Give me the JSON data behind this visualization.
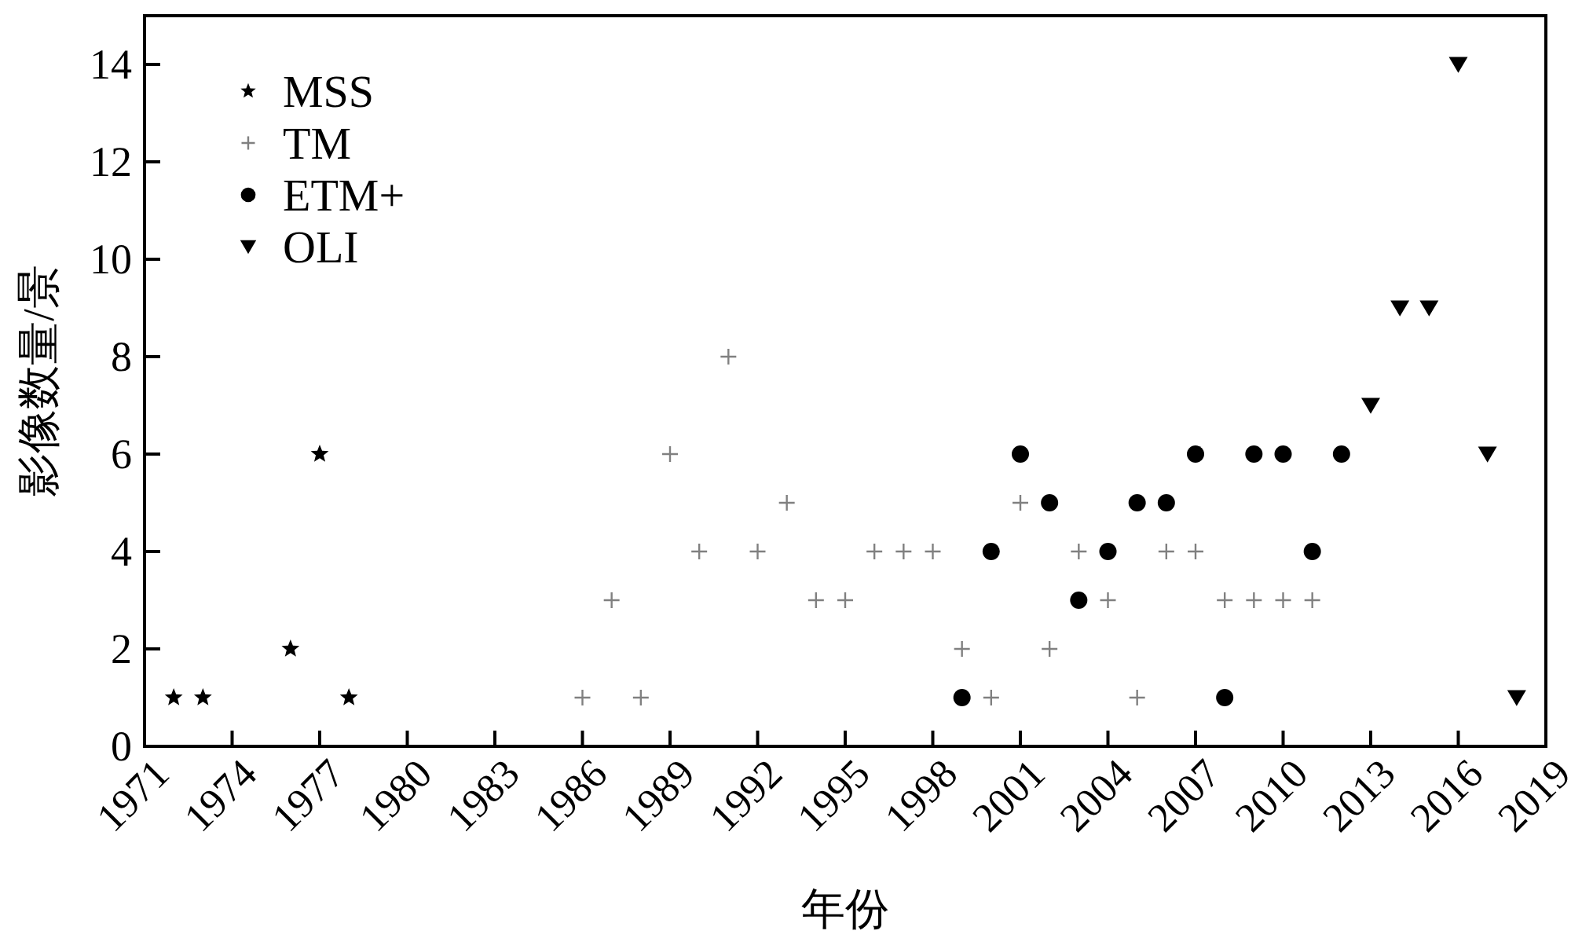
{
  "chart_data": {
    "type": "scatter",
    "xlabel": "年份",
    "ylabel": "影像数量/景",
    "xlim": [
      1971,
      2019
    ],
    "xticks": [
      1971,
      1974,
      1977,
      1980,
      1983,
      1986,
      1989,
      1992,
      1995,
      1998,
      2001,
      2004,
      2007,
      2010,
      2013,
      2016,
      2019
    ],
    "ylim": [
      0,
      15
    ],
    "yticks": [
      0,
      2,
      4,
      6,
      8,
      10,
      12,
      14
    ],
    "grid": false,
    "legend": "top left",
    "series": [
      {
        "name": "MSS",
        "color": "#000000",
        "marker": "star",
        "x": [
          1972,
          1973,
          1976,
          1977,
          1978
        ],
        "values": [
          1,
          1,
          2,
          6,
          1
        ]
      },
      {
        "name": "TM",
        "color": "#808080",
        "marker": "cross",
        "x": [
          1986,
          1987,
          1988,
          1989,
          1990,
          1991,
          1992,
          1993,
          1994,
          1995,
          1996,
          1997,
          1998,
          1999,
          2000,
          2001,
          2002,
          2003,
          2004,
          2005,
          2006,
          2007,
          2008,
          2009,
          2010,
          2011
        ],
        "values": [
          1,
          3,
          1,
          6,
          4,
          8,
          4,
          5,
          3,
          3,
          4,
          4,
          4,
          2,
          1,
          5,
          2,
          4,
          3,
          1,
          4,
          4,
          3,
          3,
          3,
          3
        ]
      },
      {
        "name": "ETM+",
        "color": "#000000",
        "marker": "circle",
        "x": [
          1999,
          2000,
          2001,
          2002,
          2003,
          2004,
          2005,
          2006,
          2007,
          2008,
          2009,
          2010,
          2011,
          2012
        ],
        "values": [
          1,
          4,
          6,
          5,
          3,
          4,
          5,
          5,
          6,
          1,
          6,
          6,
          4,
          6
        ]
      },
      {
        "name": "OLI",
        "color": "#000000",
        "marker": "triangle",
        "x": [
          2013,
          2014,
          2015,
          2016,
          2017,
          2018
        ],
        "values": [
          7,
          9,
          9,
          14,
          6,
          1
        ]
      }
    ]
  }
}
